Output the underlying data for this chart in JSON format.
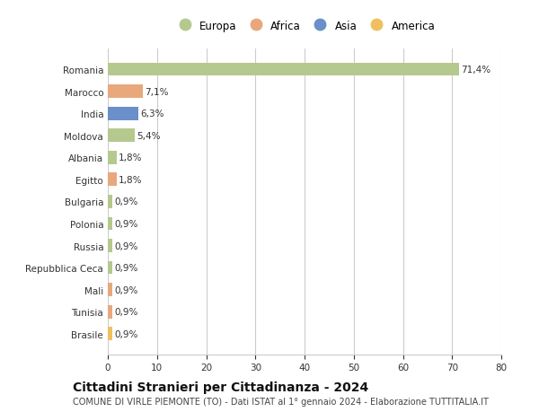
{
  "categories": [
    "Romania",
    "Marocco",
    "India",
    "Moldova",
    "Albania",
    "Egitto",
    "Bulgaria",
    "Polonia",
    "Russia",
    "Repubblica Ceca",
    "Mali",
    "Tunisia",
    "Brasile"
  ],
  "values": [
    71.4,
    7.1,
    6.3,
    5.4,
    1.8,
    1.8,
    0.9,
    0.9,
    0.9,
    0.9,
    0.9,
    0.9,
    0.9
  ],
  "labels": [
    "71,4%",
    "7,1%",
    "6,3%",
    "5,4%",
    "1,8%",
    "1,8%",
    "0,9%",
    "0,9%",
    "0,9%",
    "0,9%",
    "0,9%",
    "0,9%",
    "0,9%"
  ],
  "colors": [
    "#b5c98e",
    "#e8a87c",
    "#6b8fc9",
    "#b5c98e",
    "#b5c98e",
    "#e8a87c",
    "#b5c98e",
    "#b5c98e",
    "#b5c98e",
    "#b5c98e",
    "#e8a87c",
    "#e8a87c",
    "#f0c060"
  ],
  "legend": [
    {
      "label": "Europa",
      "color": "#b5c98e"
    },
    {
      "label": "Africa",
      "color": "#e8a87c"
    },
    {
      "label": "Asia",
      "color": "#6b8fc9"
    },
    {
      "label": "America",
      "color": "#f0c060"
    }
  ],
  "xlim": [
    0,
    80
  ],
  "xticks": [
    0,
    10,
    20,
    30,
    40,
    50,
    60,
    70,
    80
  ],
  "title": "Cittadini Stranieri per Cittadinanza - 2024",
  "subtitle": "COMUNE DI VIRLE PIEMONTE (TO) - Dati ISTAT al 1° gennaio 2024 - Elaborazione TUTTITALIA.IT",
  "grid_color": "#cccccc",
  "bg_color": "#ffffff",
  "bar_height": 0.6,
  "label_fontsize": 7.5,
  "tick_fontsize": 7.5,
  "title_fontsize": 10,
  "subtitle_fontsize": 7
}
